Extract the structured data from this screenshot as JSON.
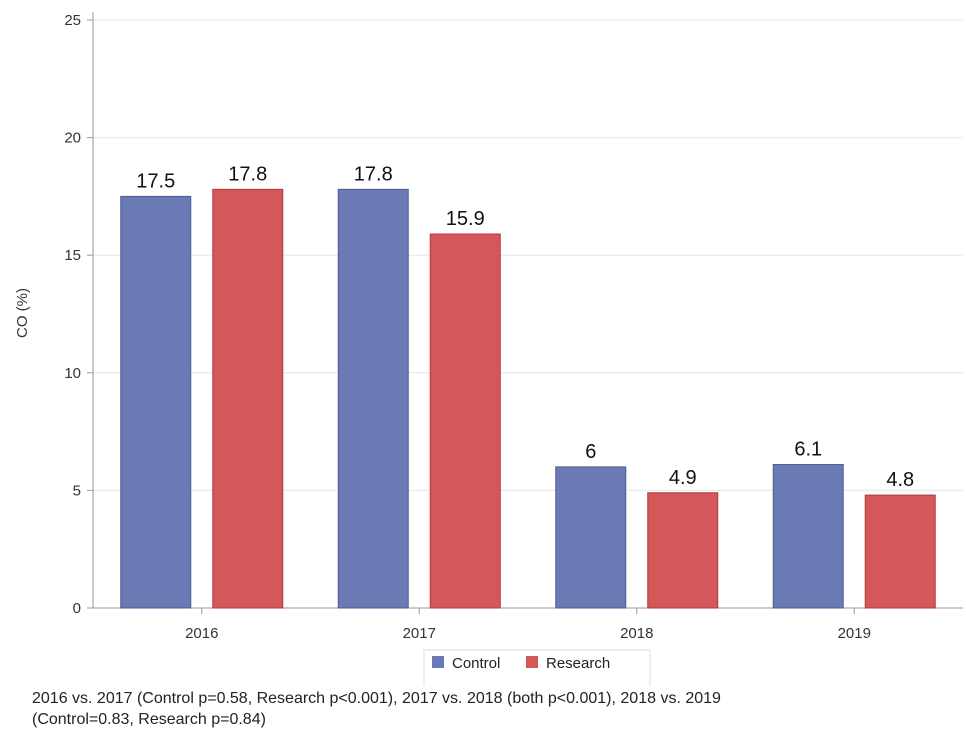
{
  "chart_data": {
    "type": "bar",
    "categories": [
      "2016",
      "2017",
      "2018",
      "2019"
    ],
    "series": [
      {
        "name": "Control",
        "color": "#6b7ab5",
        "values": [
          17.5,
          17.8,
          6,
          6.1
        ],
        "labels": [
          "17.5",
          "17.8",
          "6",
          "6.1"
        ]
      },
      {
        "name": "Research",
        "color": "#d45759",
        "values": [
          17.8,
          15.9,
          4.9,
          4.8
        ],
        "labels": [
          "17.8",
          "15.9",
          "4.9",
          "4.8"
        ]
      }
    ],
    "ylabel": "CO (%)",
    "xlabel": "",
    "ylim": [
      0,
      25
    ],
    "yticks": [
      "0",
      "5",
      "10",
      "15",
      "20",
      "25"
    ],
    "grid": true,
    "legend_position": "bottom"
  },
  "caption": {
    "line1": "2016 vs. 2017 (Control p=0.58, Research p<0.001), 2017 vs. 2018 (both p<0.001), 2018 vs. 2019",
    "line2": "(Control=0.83, Research p=0.84)"
  }
}
